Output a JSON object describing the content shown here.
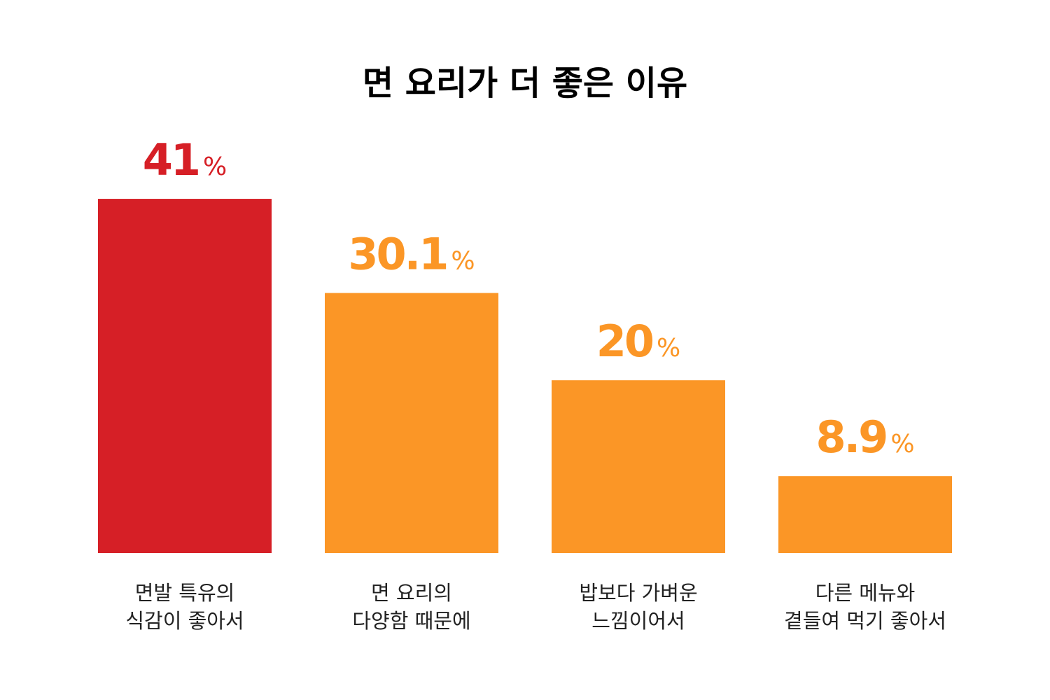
{
  "chart_data": {
    "type": "bar",
    "title": "면 요리가 더 좋은 이유",
    "categories": [
      [
        "면발 특유의",
        "식감이 좋아서"
      ],
      [
        "면 요리의",
        "다양함 때문에"
      ],
      [
        "밥보다 가벼운",
        "느낌이어서"
      ],
      [
        "다른 메뉴와",
        "곁들여 먹기 좋아서"
      ]
    ],
    "values": [
      41,
      30.1,
      20,
      8.9
    ],
    "value_labels": [
      "41%",
      "30.1%",
      "20%",
      "8.9%"
    ],
    "colors": [
      "#d61f26",
      "#fb9626",
      "#fb9626",
      "#fb9626"
    ]
  }
}
